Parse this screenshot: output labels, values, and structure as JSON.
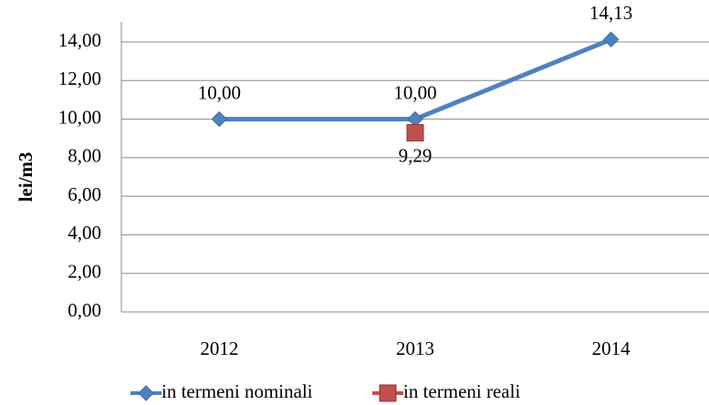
{
  "chart_data": {
    "type": "line",
    "y_label": "lei/m3",
    "categories": [
      "2012",
      "2013",
      "2014"
    ],
    "series": [
      {
        "name": "in termeni nominali",
        "color": "#4f81bd",
        "marker": "diamond",
        "values": [
          10,
          10,
          14.13
        ],
        "value_labels": [
          "10,00",
          "10,00",
          "14,13"
        ]
      },
      {
        "name": "in termeni reali",
        "color": "#c0504d",
        "marker": "square",
        "values": [
          null,
          9.29,
          null
        ],
        "value_labels": [
          null,
          "9,29",
          null
        ]
      }
    ],
    "ylim": [
      0,
      14
    ],
    "yticks": [
      {
        "value": 0,
        "label": "0,00"
      },
      {
        "value": 2,
        "label": "2,00"
      },
      {
        "value": 4,
        "label": "4,00"
      },
      {
        "value": 6,
        "label": "6,00"
      },
      {
        "value": 8,
        "label": "8,00"
      },
      {
        "value": 10,
        "label": "10,00"
      },
      {
        "value": 12,
        "label": "12,00"
      },
      {
        "value": 14,
        "label": "14,00"
      }
    ],
    "grid": true,
    "legend": "bottom"
  }
}
